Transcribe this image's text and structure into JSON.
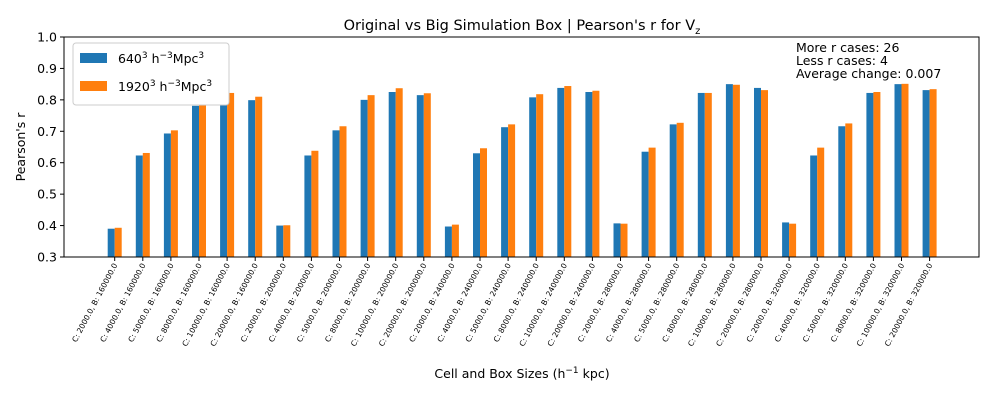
{
  "chart_data": {
    "type": "bar",
    "title": "Original vs Big Simulation Box | Pearson's r for V",
    "title_subscript": "z",
    "xlabel": "Cell and Box Sizes (h",
    "xlabel_sup": "−1",
    "xlabel_tail": " kpc)",
    "ylabel": "Pearson's r",
    "ylim": [
      0.3,
      1.0
    ],
    "yticks": [
      0.3,
      0.4,
      0.5,
      0.6,
      0.7,
      0.8,
      0.9,
      1.0
    ],
    "grid": false,
    "legend_position": "top-left",
    "categories": [
      "C: 2000.0, B: 160000.0",
      "C: 4000.0, B: 160000.0",
      "C: 5000.0, B: 160000.0",
      "C: 8000.0, B: 160000.0",
      "C: 10000.0, B: 160000.0",
      "C: 20000.0, B: 160000.0",
      "C: 2000.0, B: 200000.0",
      "C: 4000.0, B: 200000.0",
      "C: 5000.0, B: 200000.0",
      "C: 8000.0, B: 200000.0",
      "C: 10000.0, B: 200000.0",
      "C: 20000.0, B: 200000.0",
      "C: 2000.0, B: 240000.0",
      "C: 4000.0, B: 240000.0",
      "C: 5000.0, B: 240000.0",
      "C: 8000.0, B: 240000.0",
      "C: 10000.0, B: 240000.0",
      "C: 20000.0, B: 240000.0",
      "C: 2000.0, B: 280000.0",
      "C: 4000.0, B: 280000.0",
      "C: 5000.0, B: 280000.0",
      "C: 8000.0, B: 280000.0",
      "C: 10000.0, B: 280000.0",
      "C: 20000.0, B: 280000.0",
      "C: 2000.0, B: 320000.0",
      "C: 4000.0, B: 320000.0",
      "C: 5000.0, B: 320000.0",
      "C: 8000.0, B: 320000.0",
      "C: 10000.0, B: 320000.0",
      "C: 20000.0, B: 320000.0"
    ],
    "series": [
      {
        "name": "640",
        "name_sup": "3",
        "name_tail": " h",
        "name_sup2": "−3",
        "name_tail2": "Mpc",
        "name_sup3": "3",
        "color": "#1f77b4",
        "values": [
          0.39,
          0.623,
          0.693,
          0.781,
          0.812,
          0.799,
          0.4,
          0.623,
          0.703,
          0.8,
          0.825,
          0.815,
          0.397,
          0.63,
          0.713,
          0.808,
          0.838,
          0.825,
          0.407,
          0.635,
          0.722,
          0.822,
          0.85,
          0.838,
          0.41,
          0.623,
          0.716,
          0.822,
          0.85,
          0.831
        ]
      },
      {
        "name": "1920",
        "name_sup": "3",
        "name_tail": " h",
        "name_sup2": "−3",
        "name_tail2": "Mpc",
        "name_sup3": "3",
        "color": "#ff7f0e",
        "values": [
          0.393,
          0.631,
          0.703,
          0.795,
          0.822,
          0.81,
          0.401,
          0.638,
          0.716,
          0.815,
          0.837,
          0.821,
          0.403,
          0.646,
          0.722,
          0.818,
          0.844,
          0.829,
          0.406,
          0.648,
          0.727,
          0.822,
          0.848,
          0.831,
          0.406,
          0.648,
          0.725,
          0.825,
          0.851,
          0.834
        ]
      }
    ],
    "annotations": [
      "More r cases: 26",
      "Less r cases: 4",
      "Average change: 0.007"
    ]
  }
}
